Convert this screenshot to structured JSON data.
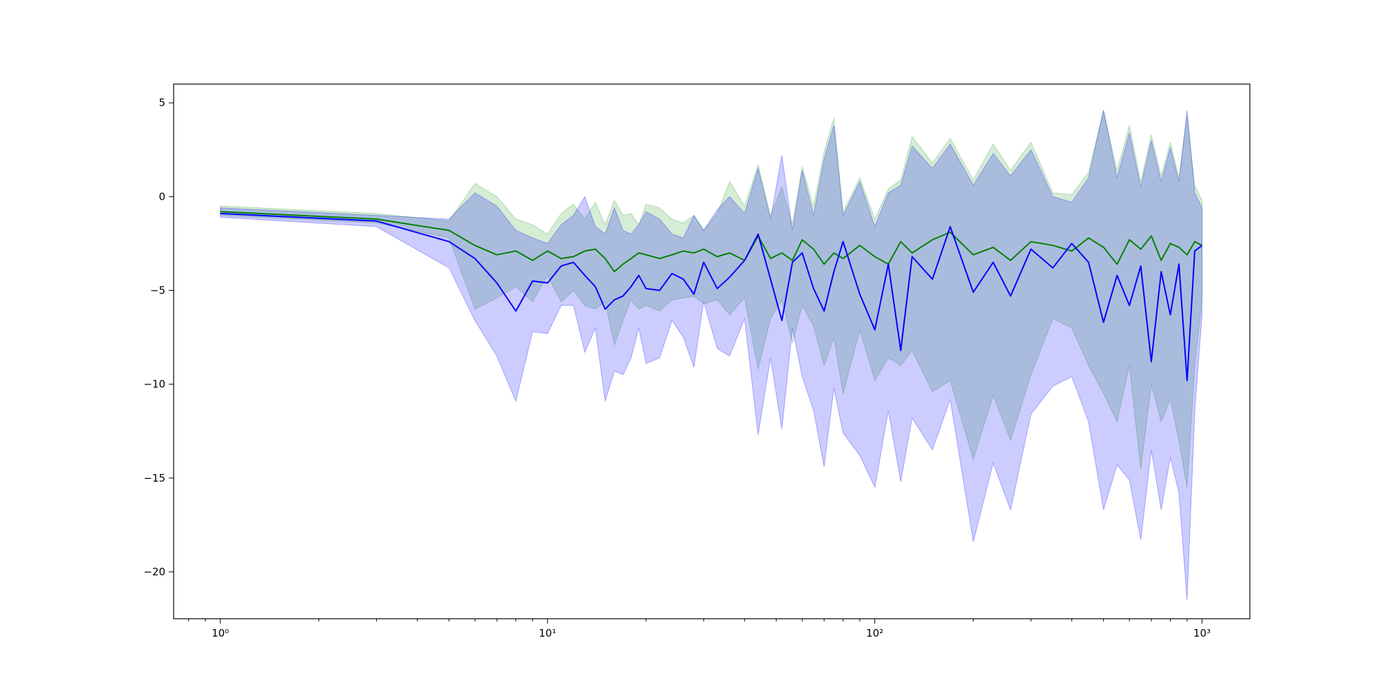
{
  "chart_data": {
    "type": "line",
    "title": "",
    "xlabel": "",
    "ylabel": "",
    "xscale": "log",
    "xlim": [
      0.72,
      1400
    ],
    "ylim": [
      -22.5,
      6
    ],
    "grid": false,
    "legend": "none",
    "x_ticks": [
      {
        "value": 1,
        "label": "10⁰"
      },
      {
        "value": 10,
        "label": "10¹"
      },
      {
        "value": 100,
        "label": "10²"
      },
      {
        "value": 1000,
        "label": "10³"
      }
    ],
    "y_ticks": [
      {
        "value": 5,
        "label": "5"
      },
      {
        "value": 0,
        "label": "0"
      },
      {
        "value": -5,
        "label": "−5"
      },
      {
        "value": -10,
        "label": "−10"
      },
      {
        "value": -15,
        "label": "−15"
      },
      {
        "value": -20,
        "label": "−20"
      }
    ],
    "series": [
      {
        "color": "#008000",
        "band_color": "#2ca02c",
        "x": [
          1,
          3,
          5,
          6,
          7,
          8,
          9,
          10,
          11,
          12,
          13,
          14,
          15,
          16,
          17,
          18,
          19,
          20,
          22,
          24,
          26,
          28,
          30,
          33,
          36,
          40,
          44,
          48,
          52,
          56,
          60,
          65,
          70,
          75,
          80,
          90,
          100,
          110,
          120,
          130,
          150,
          170,
          200,
          230,
          260,
          300,
          350,
          400,
          450,
          500,
          550,
          600,
          650,
          700,
          750,
          800,
          850,
          900,
          950,
          1000
        ],
        "y": [
          -0.8,
          -1.2,
          -1.8,
          -2.6,
          -3.1,
          -2.9,
          -3.4,
          -2.9,
          -3.3,
          -3.2,
          -2.9,
          -2.8,
          -3.3,
          -4.0,
          -3.6,
          -3.3,
          -3.0,
          -3.1,
          -3.3,
          -3.1,
          -2.9,
          -3.0,
          -2.8,
          -3.2,
          -3.0,
          -3.4,
          -2.1,
          -3.3,
          -3.0,
          -3.4,
          -2.3,
          -2.8,
          -3.6,
          -3.0,
          -3.3,
          -2.6,
          -3.2,
          -3.6,
          -2.4,
          -3.0,
          -2.3,
          -1.9,
          -3.1,
          -2.7,
          -3.4,
          -2.4,
          -2.6,
          -2.9,
          -2.2,
          -2.7,
          -3.6,
          -2.3,
          -2.8,
          -2.1,
          -3.4,
          -2.5,
          -2.7,
          -3.1,
          -2.4,
          -2.6
        ],
        "upper": [
          -0.5,
          -0.9,
          -1.3,
          0.7,
          0.0,
          -1.2,
          -1.5,
          -2.0,
          -0.9,
          -0.4,
          -1.2,
          -0.3,
          -1.5,
          -0.2,
          -1.0,
          -0.9,
          -1.5,
          -0.4,
          -0.6,
          -1.2,
          -1.4,
          -1.0,
          -1.8,
          -0.9,
          0.8,
          -0.5,
          1.7,
          -1.0,
          0.5,
          -1.5,
          1.6,
          -0.5,
          2.4,
          4.2,
          -0.8,
          1.0,
          -1.2,
          0.4,
          0.9,
          3.2,
          1.8,
          3.1,
          0.9,
          2.8,
          1.4,
          2.9,
          0.2,
          0.1,
          1.3,
          4.6,
          1.4,
          3.8,
          0.8,
          3.3,
          1.1,
          2.9,
          1.0,
          4.3,
          0.6,
          -0.2
        ],
        "lower": [
          -1.0,
          -1.4,
          -2.2,
          -6.0,
          -5.4,
          -4.8,
          -5.6,
          -4.2,
          -5.6,
          -5.0,
          -5.8,
          -6.0,
          -5.6,
          -7.9,
          -6.6,
          -5.5,
          -6.0,
          -5.8,
          -6.1,
          -5.5,
          -5.4,
          -5.3,
          -5.7,
          -5.5,
          -6.3,
          -5.4,
          -9.2,
          -6.5,
          -5.5,
          -7.8,
          -5.8,
          -6.9,
          -9.0,
          -7.5,
          -10.5,
          -7.1,
          -9.8,
          -8.6,
          -9.0,
          -8.2,
          -10.4,
          -9.8,
          -14.0,
          -10.6,
          -13.0,
          -9.5,
          -6.5,
          -7.0,
          -9.0,
          -10.5,
          -12.0,
          -9.0,
          -14.5,
          -10.0,
          -12.0,
          -10.8,
          -13.0,
          -15.5,
          -9.0,
          -5.5
        ]
      },
      {
        "color": "#0000ff",
        "band_color": "#0000ff",
        "x": [
          1,
          3,
          5,
          6,
          7,
          8,
          9,
          10,
          11,
          12,
          13,
          14,
          15,
          16,
          17,
          18,
          19,
          20,
          22,
          24,
          26,
          28,
          30,
          33,
          36,
          40,
          44,
          48,
          52,
          56,
          60,
          65,
          70,
          75,
          80,
          90,
          100,
          110,
          120,
          130,
          150,
          170,
          200,
          230,
          260,
          300,
          350,
          400,
          450,
          500,
          550,
          600,
          650,
          700,
          750,
          800,
          850,
          900,
          950,
          1000
        ],
        "y": [
          -0.9,
          -1.3,
          -2.4,
          -3.3,
          -4.6,
          -6.1,
          -4.5,
          -4.6,
          -3.7,
          -3.5,
          -4.2,
          -4.8,
          -6.0,
          -5.5,
          -5.3,
          -4.8,
          -4.2,
          -4.9,
          -5.0,
          -4.1,
          -4.4,
          -5.2,
          -3.5,
          -4.9,
          -4.3,
          -3.4,
          -2.0,
          -4.4,
          -6.6,
          -3.5,
          -3.0,
          -4.9,
          -6.1,
          -4.0,
          -2.4,
          -5.2,
          -7.1,
          -3.6,
          -8.2,
          -3.2,
          -4.4,
          -1.6,
          -5.1,
          -3.5,
          -5.3,
          -2.8,
          -3.8,
          -2.5,
          -3.5,
          -6.7,
          -4.2,
          -5.8,
          -3.7,
          -8.8,
          -4.0,
          -6.3,
          -3.6,
          -9.8,
          -2.9,
          -2.6
        ],
        "upper": [
          -0.6,
          -1.0,
          -1.2,
          0.2,
          -0.5,
          -1.8,
          -2.2,
          -2.5,
          -1.5,
          -1.0,
          0.0,
          -1.6,
          -2.0,
          -0.6,
          -1.8,
          -2.0,
          -1.5,
          -0.8,
          -1.2,
          -2.0,
          -2.2,
          -1.0,
          -1.8,
          -0.7,
          0.0,
          -0.9,
          1.5,
          -1.2,
          2.2,
          -1.8,
          1.4,
          -1.0,
          2.0,
          3.8,
          -1.0,
          0.8,
          -1.6,
          0.2,
          0.6,
          2.7,
          1.5,
          2.8,
          0.6,
          2.3,
          1.1,
          2.5,
          0.0,
          -0.3,
          1.0,
          4.6,
          1.0,
          3.4,
          0.5,
          3.0,
          0.8,
          2.6,
          0.8,
          4.6,
          0.2,
          -0.6
        ],
        "lower": [
          -1.1,
          -1.6,
          -3.8,
          -6.6,
          -8.5,
          -10.9,
          -7.2,
          -7.3,
          -5.8,
          -5.8,
          -8.3,
          -7.0,
          -10.9,
          -9.3,
          -9.5,
          -8.6,
          -7.0,
          -8.9,
          -8.6,
          -6.6,
          -7.5,
          -9.1,
          -5.6,
          -8.1,
          -8.5,
          -6.5,
          -12.7,
          -8.6,
          -12.4,
          -7.0,
          -9.6,
          -11.4,
          -14.4,
          -10.2,
          -12.6,
          -13.8,
          -15.5,
          -11.4,
          -15.2,
          -11.8,
          -13.5,
          -10.8,
          -18.4,
          -14.2,
          -16.7,
          -11.6,
          -10.1,
          -9.6,
          -12.0,
          -16.7,
          -14.3,
          -15.1,
          -18.3,
          -13.5,
          -16.7,
          -13.9,
          -15.8,
          -21.5,
          -11.5,
          -6.3
        ]
      }
    ]
  }
}
